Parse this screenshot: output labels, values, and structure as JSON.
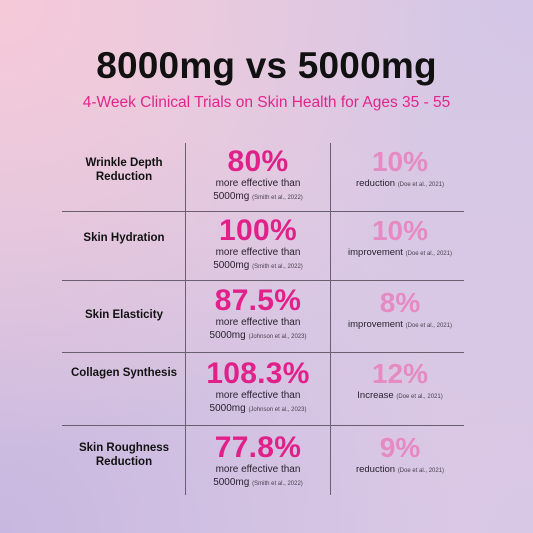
{
  "title": "8000mg vs 5000mg",
  "subtitle": "4-Week Clinical Trials on Skin Health for Ages 35 - 55",
  "colors": {
    "accent": "#e0218a",
    "accent_light": "#e68ac4"
  },
  "rows": [
    {
      "label": "Wrinkle Depth Reduction",
      "a_value": "80%",
      "a_desc1": "more effective than",
      "a_desc2": "5000mg",
      "a_cite": "(Smith et al., 2022)",
      "b_value": "10%",
      "b_desc": "reduction",
      "b_cite": "(Doe et al., 2021)"
    },
    {
      "label": "Skin Hydration",
      "a_value": "100%",
      "a_desc1": "more effective than",
      "a_desc2": "5000mg",
      "a_cite": "(Smith et al., 2022)",
      "b_value": "10%",
      "b_desc": "improvement",
      "b_cite": "(Doe et al., 2021)"
    },
    {
      "label": "Skin Elasticity",
      "a_value": "87.5%",
      "a_desc1": "more effective than",
      "a_desc2": "5000mg",
      "a_cite": "(Johnson et al., 2023)",
      "b_value": "8%",
      "b_desc": "improvement",
      "b_cite": "(Doe et al., 2021)"
    },
    {
      "label": "Collagen Synthesis",
      "a_value": "108.3%",
      "a_desc1": "more effective than",
      "a_desc2": "5000mg",
      "a_cite": "(Johnson et al., 2023)",
      "b_value": "12%",
      "b_desc": "Increase",
      "b_cite": "(Doe et al., 2021)"
    },
    {
      "label": "Skin Roughness Reduction",
      "a_value": "77.8%",
      "a_desc1": "more effective than",
      "a_desc2": "5000mg",
      "a_cite": "(Smith et al., 2022)",
      "b_value": "9%",
      "b_desc": "reduction",
      "b_cite": "(Doe et al., 2021)"
    }
  ]
}
